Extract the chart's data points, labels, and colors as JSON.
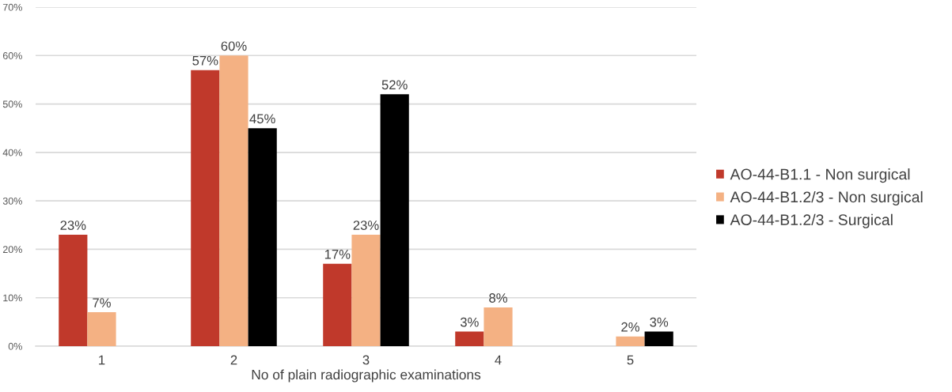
{
  "chart_data": {
    "type": "bar",
    "categories": [
      "1",
      "2",
      "3",
      "4",
      "5"
    ],
    "xlabel": "No of plain radiographic examinations",
    "series": [
      {
        "name": "AO-44-B1.1 - Non surgical",
        "color": "#c0392b",
        "values": [
          23,
          57,
          17,
          3,
          null
        ],
        "value_labels": [
          "23%",
          "57%",
          "17%",
          "3%",
          null
        ]
      },
      {
        "name": "AO-44-B1.2/3 - Non surgical",
        "color": "#f4b183",
        "values": [
          7,
          60,
          23,
          8,
          2
        ],
        "value_labels": [
          "7%",
          "60%",
          "23%",
          "8%",
          "2%"
        ]
      },
      {
        "name": "AO-44-B1.2/3 - Surgical",
        "color": "#000000",
        "values": [
          null,
          45,
          52,
          null,
          3
        ],
        "value_labels": [
          null,
          "45%",
          "52%",
          null,
          "3%"
        ]
      }
    ],
    "ylim": [
      0,
      70
    ],
    "yticks": [
      {
        "value": 0,
        "label": "0%"
      },
      {
        "value": 10,
        "label": "10%"
      },
      {
        "value": 20,
        "label": "20%"
      },
      {
        "value": 30,
        "label": "30%"
      },
      {
        "value": 40,
        "label": "40%"
      },
      {
        "value": 50,
        "label": "50%"
      },
      {
        "value": 60,
        "label": "60%"
      },
      {
        "value": 70,
        "label": "70%"
      }
    ],
    "grid": "y",
    "legend": "right"
  }
}
